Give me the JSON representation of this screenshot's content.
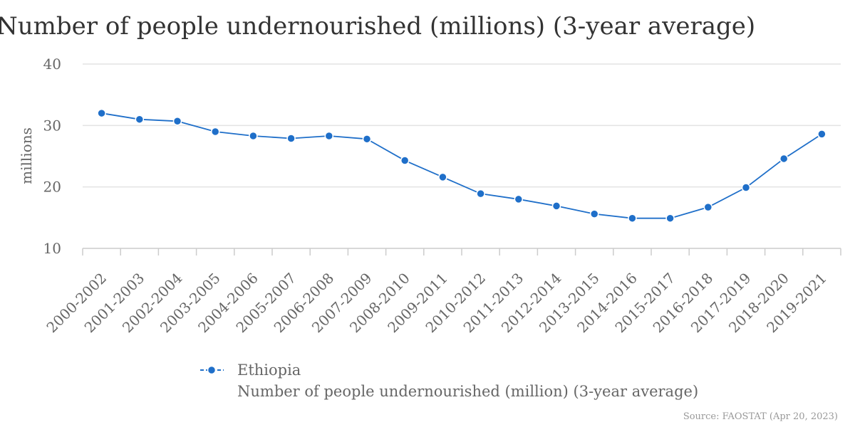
{
  "chart_data": {
    "type": "line",
    "title": "Number of people undernourished (millions) (3-year average)",
    "ylabel": "millions",
    "xlabel": "",
    "ylim": [
      10,
      40
    ],
    "yticks": [
      10,
      20,
      30,
      40
    ],
    "grid": true,
    "legend_position": "bottom",
    "categories": [
      "2000-2002",
      "2001-2003",
      "2002-2004",
      "2003-2005",
      "2004-2006",
      "2005-2007",
      "2006-2008",
      "2007-2009",
      "2008-2010",
      "2009-2011",
      "2010-2012",
      "2011-2013",
      "2012-2014",
      "2013-2015",
      "2014-2016",
      "2015-2017",
      "2016-2018",
      "2017-2019",
      "2018-2020",
      "2019-2021"
    ],
    "series": [
      {
        "name": "Ethiopia",
        "description": "Number of people undernourished (million) (3-year average)",
        "color": "#1f6fc9",
        "values": [
          32.0,
          31.0,
          30.7,
          29.0,
          28.3,
          27.9,
          28.3,
          27.8,
          24.3,
          21.6,
          18.9,
          18.0,
          16.9,
          15.6,
          14.9,
          14.9,
          16.7,
          19.9,
          24.6,
          28.6
        ]
      }
    ],
    "source": "Source: FAOSTAT (Apr 20, 2023)"
  }
}
